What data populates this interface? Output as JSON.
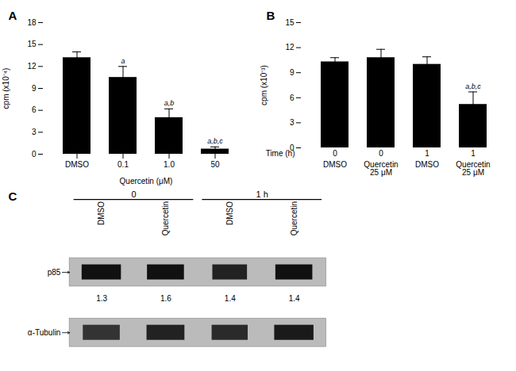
{
  "chart_data": [
    {
      "type": "bar",
      "title": "A",
      "categories": [
        "DMSO",
        "0.1",
        "1.0",
        "50"
      ],
      "values": [
        13.2,
        10.5,
        5.0,
        0.7
      ],
      "errors": [
        0.8,
        1.5,
        1.2,
        0.3
      ],
      "annotations": [
        null,
        "a",
        "a,b",
        "a,b,c"
      ],
      "xlabel": "Quercetin (μM)",
      "ylabel": "cpm (x10⁻⁴)",
      "ylim": [
        0,
        18
      ],
      "yticks": [
        0,
        3,
        6,
        9,
        12,
        15,
        18
      ],
      "color": "#000000",
      "grid": false
    },
    {
      "type": "bar",
      "title": "B",
      "categories": [
        "DMSO",
        "Quercetin\n25 μM",
        "DMSO",
        "Quercetin\n25 μM"
      ],
      "time_row_label": "Time (h)",
      "time_labels": [
        "0",
        "0",
        "1",
        "1"
      ],
      "values": [
        10.3,
        10.8,
        10.0,
        5.2
      ],
      "errors": [
        0.5,
        1.0,
        0.9,
        1.5
      ],
      "annotations": [
        null,
        null,
        null,
        "a,b,c"
      ],
      "ylabel": "cpm (x10⁻³)",
      "ylim": [
        0,
        15
      ],
      "yticks": [
        0,
        3,
        6,
        9,
        12,
        15
      ],
      "color": "#000000",
      "grid": false
    },
    {
      "type": "blot",
      "title": "C",
      "time_groups": [
        "0",
        "1 h"
      ],
      "categories": [
        "DMSO",
        "Quercetin",
        "DMSO",
        "Quercetin"
      ],
      "values": [
        1.3,
        1.6,
        1.4,
        1.4
      ],
      "row_labels": [
        "p85",
        "α-Tubulin"
      ]
    }
  ]
}
